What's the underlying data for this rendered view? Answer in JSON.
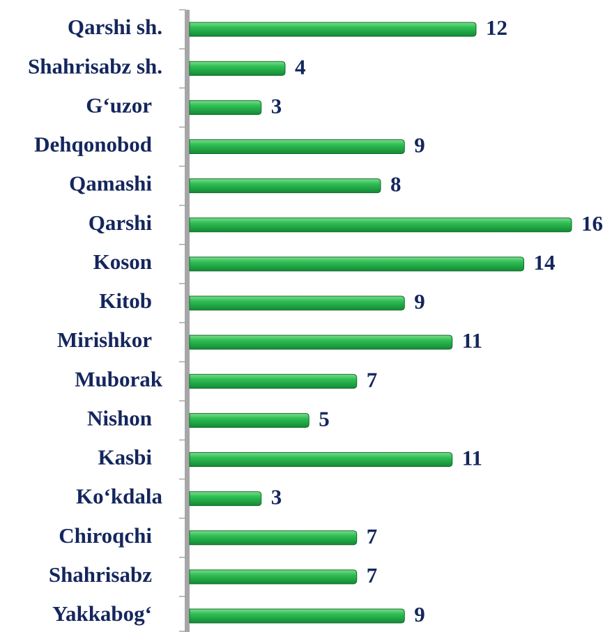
{
  "chart_data": {
    "type": "bar",
    "orientation": "horizontal",
    "categories": [
      "Qarshi sh.",
      "Shahrisabz sh.",
      "G‘uzor",
      "Dehqonobod",
      "Qamashi",
      "Qarshi",
      "Koson",
      "Kitob",
      "Mirishkor",
      "Muborak",
      "Nishon",
      "Kasbi",
      "Ko‘kdala",
      "Chiroqchi",
      "Shahrisabz",
      "Yakkabog‘"
    ],
    "values": [
      12,
      4,
      3,
      9,
      8,
      16,
      14,
      9,
      11,
      7,
      5,
      11,
      3,
      7,
      7,
      9
    ],
    "color": "#22a845"
  }
}
